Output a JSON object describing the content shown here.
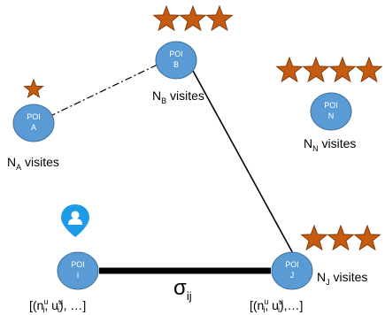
{
  "colors": {
    "node_fill": "#5B9BD5",
    "node_stroke": "#41719C",
    "star_fill": "#C55A11",
    "star_stroke": "#843C0C",
    "user_pin": "#1E9BE6"
  },
  "nodes": [
    {
      "id": "A",
      "line1": "POI",
      "line2": "A",
      "label_main": "N",
      "label_sub": "A",
      "label_rest": " visites",
      "stars": 1
    },
    {
      "id": "B",
      "line1": "POI",
      "line2": "B",
      "label_main": "N",
      "label_sub": "B",
      "label_rest": " visites",
      "stars": 3
    },
    {
      "id": "N",
      "line1": "POI",
      "line2": "N",
      "label_main": "N",
      "label_sub": "N",
      "label_rest": " visites",
      "stars": 4
    },
    {
      "id": "I",
      "line1": "POI",
      "line2": "I",
      "list_label": "[(n",
      "list_sup1": "i",
      "list_sup1b": "u",
      "list_mid": ", u",
      "list_sup2": "i",
      "list_sup2b": "u",
      "list_end": "), …]",
      "stars": 0
    },
    {
      "id": "J",
      "line1": "POI",
      "line2": "J",
      "label_main": "N",
      "label_sub": "J",
      "label_rest": " visites",
      "list_label": "[(n",
      "list_sup1": "i",
      "list_sup1b": "u",
      "list_mid": ", u",
      "list_sup2": "i",
      "list_sup2b": "u",
      "list_end": "),…]",
      "stars": 3
    }
  ],
  "edges": [
    {
      "from": "A",
      "to": "B",
      "style": "dash-dot"
    },
    {
      "from": "B",
      "to": "J",
      "style": "solid"
    },
    {
      "from": "I",
      "to": "J",
      "style": "thick"
    }
  ],
  "edge_label": {
    "main": "σ",
    "sub": "ij"
  },
  "user_icon": "user-location-pin-icon"
}
